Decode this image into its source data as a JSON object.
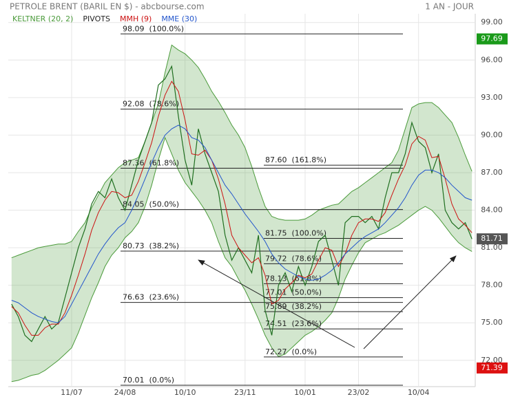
{
  "chart_data": {
    "type": "line",
    "title": "PETROLE BRENT (BARIL EN $) - abcbourse.com",
    "period": "1 AN - JOUR",
    "color": "#1f6e1f",
    "categories": [
      null,
      null,
      null,
      null,
      null,
      null,
      null,
      null,
      null,
      "11/07",
      null,
      null,
      null,
      null,
      null,
      null,
      null,
      "24/08",
      null,
      null,
      null,
      null,
      null,
      null,
      null,
      null,
      "10/10",
      null,
      null,
      null,
      null,
      null,
      null,
      null,
      null,
      "23/11",
      null,
      null,
      null,
      null,
      null,
      null,
      null,
      null,
      "10/01",
      null,
      null,
      null,
      null,
      null,
      null,
      null,
      "23/02",
      null,
      null,
      null,
      null,
      null,
      null,
      null,
      null,
      "10/04",
      null,
      null,
      null,
      null,
      null,
      null,
      null,
      null
    ],
    "values": [
      76.5,
      75.5,
      74,
      73.5,
      74.5,
      75.5,
      74.5,
      75,
      77,
      79,
      81,
      82.5,
      84.5,
      85.5,
      85,
      86.5,
      85,
      84,
      86,
      88,
      89.5,
      91,
      94,
      94.5,
      95.5,
      91.5,
      88,
      86,
      90.5,
      88.5,
      87,
      85.5,
      82,
      80,
      81,
      80,
      79,
      82,
      76,
      74,
      78,
      79,
      77.5,
      79.5,
      78,
      79.5,
      81.5,
      82,
      80,
      78,
      83,
      83.5,
      83.5,
      83,
      83.5,
      82.5,
      85,
      87,
      87,
      88.5,
      91,
      89.5,
      89,
      87,
      88.5,
      84,
      83,
      82.5,
      83,
      81.7
    ],
    "series": [
      {
        "name": "KELTNER (20, 2)",
        "color": "#4a9a3a",
        "upper": [
          80.2,
          80.4,
          80.6,
          80.8,
          81,
          81.1,
          81.2,
          81.3,
          81.3,
          81.5,
          82.3,
          83,
          84.2,
          85.2,
          86.2,
          86.8,
          87.4,
          87.8,
          88,
          88.2,
          89.5,
          91,
          92.5,
          95,
          97.2,
          96.8,
          96.5,
          96,
          95.4,
          94.5,
          93.5,
          92.7,
          91.8,
          90.8,
          90,
          89,
          87.5,
          85.8,
          84.3,
          83.5,
          83.3,
          83.2,
          83.2,
          83.2,
          83.3,
          83.6,
          84,
          84.2,
          84.4,
          84.5,
          85,
          85.5,
          85.8,
          86.2,
          86.6,
          87,
          87.4,
          87.8,
          88.8,
          90.5,
          92.2,
          92.5,
          92.6,
          92.6,
          92.2,
          91.6,
          91,
          89.8,
          88.4,
          87.1
        ],
        "lower": [
          70.3,
          70.4,
          70.6,
          70.8,
          70.9,
          71.2,
          71.6,
          72,
          72.5,
          73,
          74.2,
          75.6,
          77,
          78.2,
          79.5,
          80.4,
          81,
          81.8,
          82.3,
          83,
          84.3,
          86,
          88,
          89.8,
          88.5,
          87.2,
          86.2,
          85.5,
          84.8,
          84,
          83,
          81.5,
          80.2,
          79.5,
          78.5,
          77.6,
          76.5,
          75.3,
          74,
          73,
          72.3,
          72.5,
          73,
          73.5,
          74,
          74.3,
          74.7,
          75.2,
          75.8,
          77,
          78.5,
          79.6,
          80.6,
          81.4,
          81.7,
          82,
          82.2,
          82.5,
          82.8,
          83.2,
          83.6,
          84,
          84.3,
          84,
          83.4,
          82.7,
          82,
          81.4,
          81,
          80.7
        ]
      },
      {
        "name": "PIVOTS",
        "color": "#222222",
        "levels_left": [
          {
            "value": 98.09,
            "label": "98.09  (100.0%)"
          },
          {
            "value": 92.08,
            "label": "92.08  (78.6%)"
          },
          {
            "value": 87.36,
            "label": "87.36  (61.8%)"
          },
          {
            "value": 84.05,
            "label": "84.05  (50.0%)"
          },
          {
            "value": 80.73,
            "label": "80.73  (38.2%)"
          },
          {
            "value": 76.63,
            "label": "76.63  (23.6%)"
          },
          {
            "value": 70.01,
            "label": "70.01  (0.0%)"
          }
        ],
        "levels_right": [
          {
            "value": 87.6,
            "label": "87.60  (161.8%)"
          },
          {
            "value": 81.75,
            "label": "81.75  (100.0%)"
          },
          {
            "value": 79.72,
            "label": "79.72  (78.6%)"
          },
          {
            "value": 78.13,
            "label": "78.13  (61.8%)"
          },
          {
            "value": 77.01,
            "label": "77.01  (50.0%)"
          },
          {
            "value": 75.89,
            "label": "75.89  (38.2%)"
          },
          {
            "value": 74.51,
            "label": "74.51  (23.6%)"
          },
          {
            "value": 72.27,
            "label": "72.27  (0.0%)"
          }
        ]
      },
      {
        "name": "MMH (9)",
        "color": "#cc1111",
        "values": [
          76.3,
          75.8,
          74.8,
          74,
          74,
          74.6,
          74.9,
          74.9,
          75.8,
          77.2,
          78.8,
          80.5,
          82.4,
          83.8,
          84.8,
          85.5,
          85.4,
          85,
          85.2,
          86.3,
          87.8,
          89.4,
          91.5,
          93.2,
          94.3,
          93.5,
          91.2,
          88.5,
          88.4,
          88.8,
          88,
          86.5,
          84.5,
          82,
          81,
          80.4,
          79.8,
          80.2,
          78.8,
          76.5,
          76.8,
          77.7,
          78.2,
          78.8,
          78.6,
          78.9,
          80,
          81,
          80.8,
          79.5,
          80.5,
          82,
          83,
          83.3,
          83.3,
          83.1,
          83.8,
          85.2,
          86.5,
          87.6,
          89.3,
          89.9,
          89.6,
          88.2,
          88.3,
          86.5,
          84.5,
          83.3,
          82.8,
          82.2
        ]
      },
      {
        "name": "MME (30)",
        "color": "#2255cc",
        "values": [
          76.8,
          76.6,
          76.2,
          75.8,
          75.5,
          75.3,
          75.1,
          75,
          75.5,
          76.5,
          77.5,
          78.5,
          79.5,
          80.5,
          81.3,
          82,
          82.6,
          83,
          84,
          85.2,
          86.5,
          87.8,
          89,
          90,
          90.5,
          90.8,
          90.5,
          89.8,
          89.6,
          89,
          88,
          87,
          86,
          85.3,
          84.5,
          83.7,
          83,
          82.3,
          81.5,
          80.5,
          79.8,
          79.3,
          79,
          78.7,
          78.5,
          78.4,
          78.5,
          78.8,
          79.2,
          79.8,
          80.5,
          81,
          81.5,
          81.9,
          82.2,
          82.5,
          83,
          83.6,
          84.2,
          85,
          86,
          86.8,
          87.2,
          87.2,
          87,
          86.6,
          86,
          85.5,
          85,
          84.8
        ]
      }
    ],
    "price_markers": [
      {
        "value": 97.69,
        "color": "#1a9a1a"
      },
      {
        "value": 81.71,
        "color": "#555555"
      },
      {
        "value": 71.39,
        "color": "#dd1111"
      }
    ],
    "ylim": [
      69.9,
      99.7
    ],
    "yticks": [
      {
        "value": 99,
        "label": "99.00"
      },
      {
        "value": 96,
        "label": "96.00"
      },
      {
        "value": 93,
        "label": "93.00"
      },
      {
        "value": 90,
        "label": "90.00"
      },
      {
        "value": 87,
        "label": "87.00"
      },
      {
        "value": 84,
        "label": "84.00"
      },
      {
        "value": 81,
        "label": "81.00"
      },
      {
        "value": 78,
        "label": "78.00"
      },
      {
        "value": 75,
        "label": "75.00"
      },
      {
        "value": 72,
        "label": "72.00"
      }
    ],
    "grid": true
  }
}
